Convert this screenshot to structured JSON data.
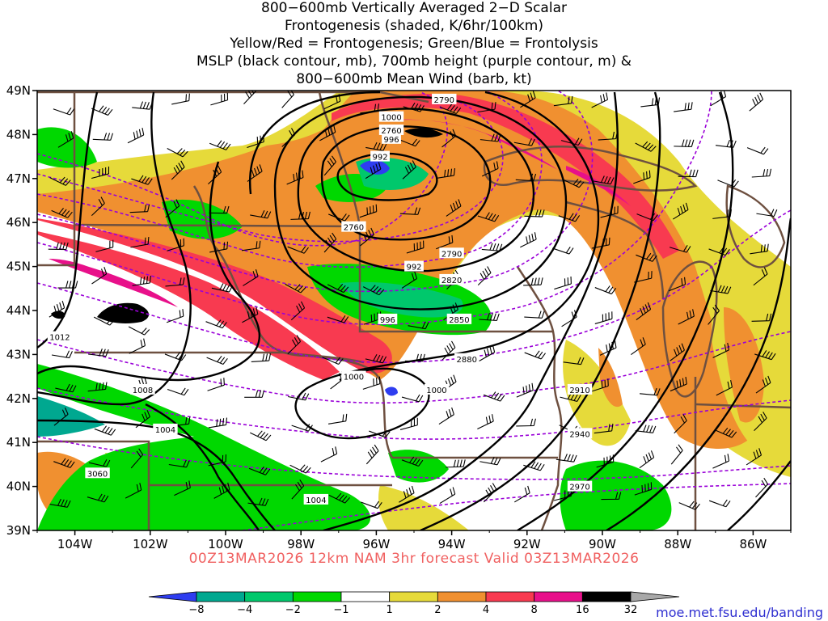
{
  "title": {
    "line1": "800−600mb Vertically Averaged 2−D Scalar",
    "line2": "Frontogenesis (shaded, K/6hr/100km)",
    "line3": "Yellow/Red = Frontogenesis;  Green/Blue = Frontolysis",
    "line4": "MSLP (black contour, mb), 700mb height (purple contour, m) &",
    "line5": "800−600mb Mean Wind (barb, kt)"
  },
  "valid_time": "00Z13MAR2026 12km NAM 3hr forecast Valid 03Z13MAR2026",
  "source_url": "moe.met.fsu.edu/banding",
  "axes": {
    "lat_labels": [
      "49N",
      "48N",
      "47N",
      "46N",
      "45N",
      "44N",
      "43N",
      "42N",
      "41N",
      "40N",
      "39N"
    ],
    "lon_labels": [
      "104W",
      "102W",
      "100W",
      "98W",
      "96W",
      "94W",
      "92W",
      "90W",
      "88W",
      "86W"
    ]
  },
  "mslp_labels": [
    {
      "text": "1000",
      "lon": -95.6,
      "lat": 48.4
    },
    {
      "text": "996",
      "lon": -95.6,
      "lat": 47.9
    },
    {
      "text": "992",
      "lon": -95.9,
      "lat": 47.5
    },
    {
      "text": "992",
      "lon": -95.0,
      "lat": 45.0
    },
    {
      "text": "996",
      "lon": -95.7,
      "lat": 43.8
    },
    {
      "text": "1000",
      "lon": -96.6,
      "lat": 42.5
    },
    {
      "text": "1000",
      "lon": -94.4,
      "lat": 42.2
    },
    {
      "text": "1004",
      "lon": -101.6,
      "lat": 41.3
    },
    {
      "text": "1008",
      "lon": -102.2,
      "lat": 42.2
    },
    {
      "text": "1012",
      "lon": -104.4,
      "lat": 43.4
    },
    {
      "text": "1004",
      "lon": -97.6,
      "lat": 39.7
    }
  ],
  "height_labels": [
    {
      "text": "2790",
      "lon": -94.2,
      "lat": 48.8
    },
    {
      "text": "2760",
      "lon": -95.6,
      "lat": 48.1
    },
    {
      "text": "2760",
      "lon": -96.6,
      "lat": 45.9
    },
    {
      "text": "2790",
      "lon": -94.0,
      "lat": 45.3
    },
    {
      "text": "2820",
      "lon": -94.0,
      "lat": 44.7
    },
    {
      "text": "2850",
      "lon": -93.8,
      "lat": 43.8
    },
    {
      "text": "2880",
      "lon": -93.6,
      "lat": 42.9
    },
    {
      "text": "2910",
      "lon": -90.6,
      "lat": 42.2
    },
    {
      "text": "2940",
      "lon": -90.6,
      "lat": 41.2
    },
    {
      "text": "2970",
      "lon": -90.6,
      "lat": 40.0
    },
    {
      "text": "3060",
      "lon": -103.4,
      "lat": 40.3
    }
  ],
  "colorbar": {
    "labels": [
      "−8",
      "−4",
      "−2",
      "−1",
      "1",
      "2",
      "4",
      "8",
      "16",
      "32"
    ],
    "colors": [
      "#2e3df0",
      "#00a890",
      "#00c86c",
      "#00d800",
      "#ffffff",
      "#e6da3a",
      "#f09030",
      "#f83a50",
      "#e8108a",
      "#000000",
      "#a8a8a8"
    ]
  },
  "colors": {
    "frontogenesis_weak": "#e6da3a",
    "frontogenesis_mod": "#f09030",
    "frontogenesis_strong": "#f83a50",
    "frontogenesis_vstrong": "#e8108a",
    "frontolysis_weak": "#00d800",
    "frontolysis_mod": "#00c86c",
    "frontolysis_strong": "#00a890",
    "frontolysis_vstrong": "#2e3df0",
    "mslp_contour": "#000000",
    "height_contour": "#9a00d8",
    "borders": "#6e5040",
    "valid_text": "#f06060",
    "url_text": "#2f2fd0"
  }
}
